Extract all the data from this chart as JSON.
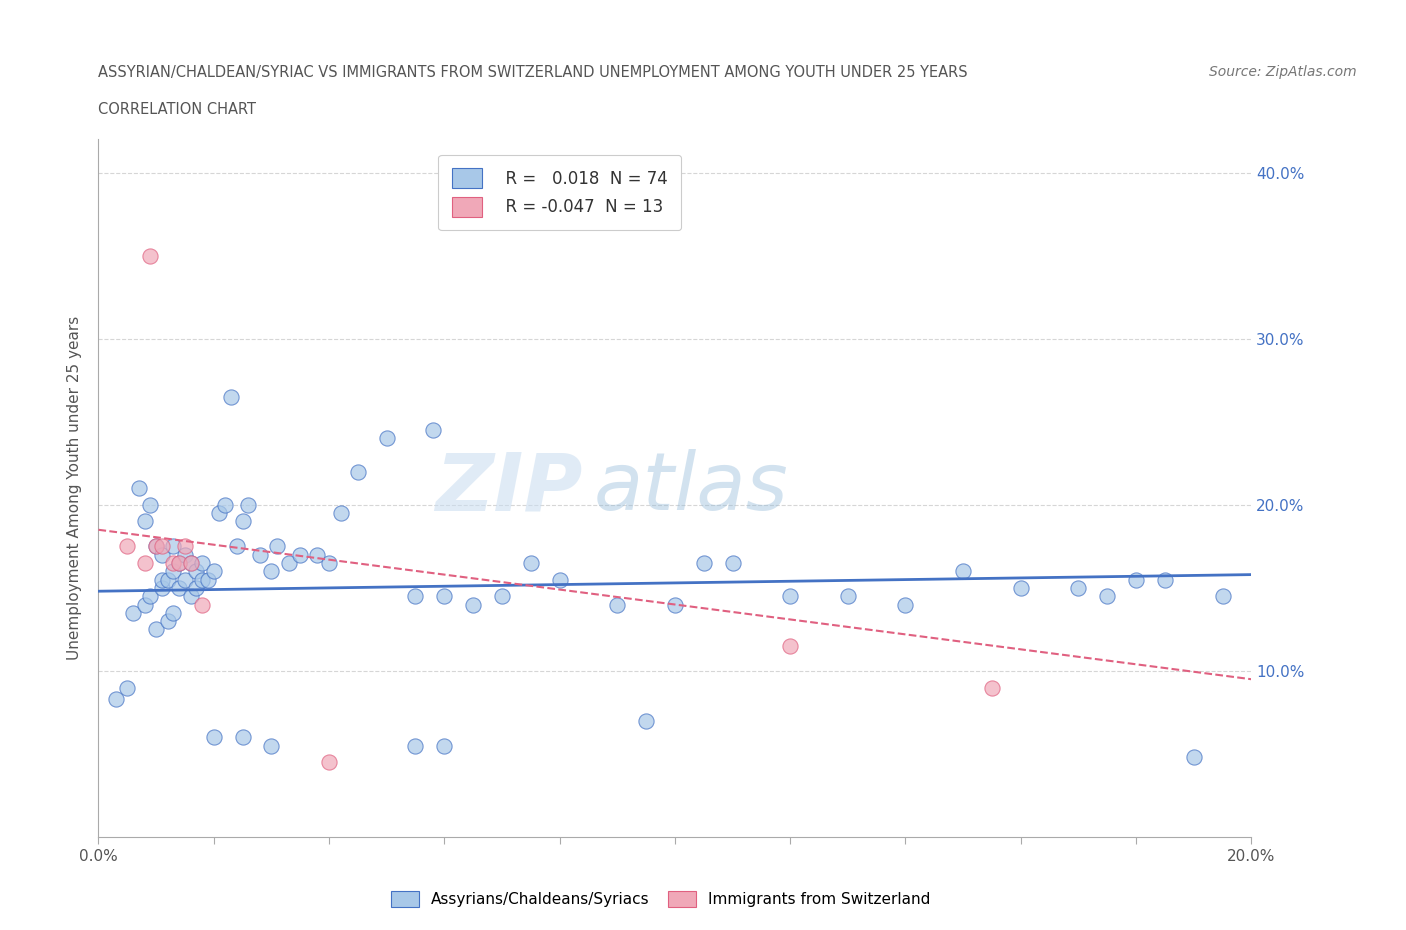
{
  "title_line1": "ASSYRIAN/CHALDEAN/SYRIAC VS IMMIGRANTS FROM SWITZERLAND UNEMPLOYMENT AMONG YOUTH UNDER 25 YEARS",
  "title_line2": "CORRELATION CHART",
  "source_text": "Source: ZipAtlas.com",
  "ylabel": "Unemployment Among Youth under 25 years",
  "xlim": [
    0.0,
    0.2
  ],
  "ylim": [
    0.0,
    0.42
  ],
  "yticks": [
    0.1,
    0.2,
    0.3,
    0.4
  ],
  "ytick_labels_right": [
    "10.0%",
    "20.0%",
    "30.0%",
    "40.0%"
  ],
  "xticks": [
    0.0,
    0.02,
    0.04,
    0.06,
    0.08,
    0.1,
    0.12,
    0.14,
    0.16,
    0.18,
    0.2
  ],
  "xtick_labels": [
    "0.0%",
    "",
    "",
    "",
    "",
    "",
    "",
    "",
    "",
    "",
    "20.0%"
  ],
  "color_blue": "#A8C8E8",
  "color_pink": "#F0A8B8",
  "line_blue": "#4472C4",
  "line_pink": "#E06080",
  "watermark_zip": "ZIP",
  "watermark_atlas": "atlas",
  "grid_color": "#CCCCCC",
  "bg_color": "#FFFFFF",
  "blue_scatter_x": [
    0.003,
    0.005,
    0.006,
    0.007,
    0.008,
    0.008,
    0.009,
    0.009,
    0.01,
    0.01,
    0.011,
    0.011,
    0.011,
    0.012,
    0.012,
    0.013,
    0.013,
    0.013,
    0.014,
    0.014,
    0.015,
    0.015,
    0.016,
    0.016,
    0.017,
    0.017,
    0.018,
    0.018,
    0.019,
    0.02,
    0.021,
    0.022,
    0.023,
    0.024,
    0.025,
    0.026,
    0.028,
    0.03,
    0.031,
    0.033,
    0.035,
    0.038,
    0.04,
    0.042,
    0.045,
    0.05,
    0.055,
    0.058,
    0.06,
    0.065,
    0.07,
    0.075,
    0.08,
    0.09,
    0.095,
    0.1,
    0.105,
    0.11,
    0.12,
    0.13,
    0.14,
    0.15,
    0.16,
    0.17,
    0.175,
    0.18,
    0.185,
    0.19,
    0.195,
    0.055,
    0.06,
    0.03,
    0.025,
    0.02
  ],
  "blue_scatter_y": [
    0.083,
    0.09,
    0.135,
    0.21,
    0.14,
    0.19,
    0.2,
    0.145,
    0.175,
    0.125,
    0.15,
    0.155,
    0.17,
    0.155,
    0.13,
    0.175,
    0.16,
    0.135,
    0.165,
    0.15,
    0.155,
    0.17,
    0.165,
    0.145,
    0.16,
    0.15,
    0.165,
    0.155,
    0.155,
    0.16,
    0.195,
    0.2,
    0.265,
    0.175,
    0.19,
    0.2,
    0.17,
    0.16,
    0.175,
    0.165,
    0.17,
    0.17,
    0.165,
    0.195,
    0.22,
    0.24,
    0.145,
    0.245,
    0.145,
    0.14,
    0.145,
    0.165,
    0.155,
    0.14,
    0.07,
    0.14,
    0.165,
    0.165,
    0.145,
    0.145,
    0.14,
    0.16,
    0.15,
    0.15,
    0.145,
    0.155,
    0.155,
    0.048,
    0.145,
    0.055,
    0.055,
    0.055,
    0.06,
    0.06
  ],
  "pink_scatter_x": [
    0.005,
    0.008,
    0.009,
    0.01,
    0.011,
    0.013,
    0.014,
    0.015,
    0.016,
    0.018,
    0.04,
    0.12,
    0.155
  ],
  "pink_scatter_y": [
    0.175,
    0.165,
    0.35,
    0.175,
    0.175,
    0.165,
    0.165,
    0.175,
    0.165,
    0.14,
    0.045,
    0.115,
    0.09
  ],
  "blue_trend_x": [
    0.0,
    0.2
  ],
  "blue_trend_y": [
    0.148,
    0.158
  ],
  "pink_trend_x": [
    0.0,
    0.2
  ],
  "pink_trend_y": [
    0.185,
    0.095
  ]
}
